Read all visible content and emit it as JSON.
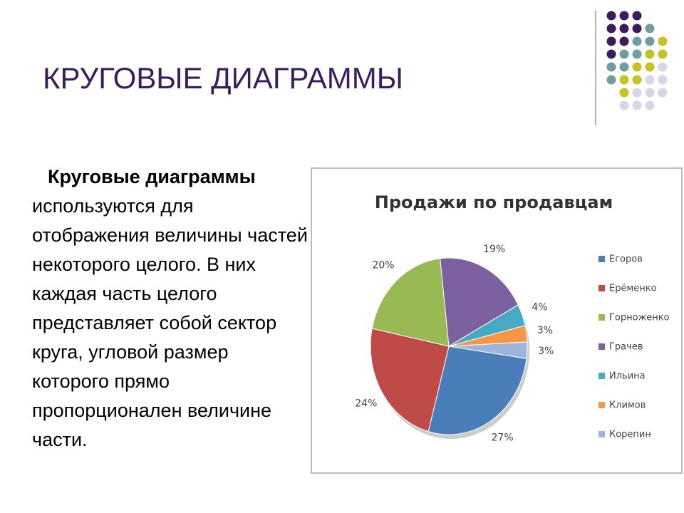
{
  "slide": {
    "title": "КРУГОВЫЕ ДИАГРАММЫ",
    "body_bold": "Круговые диаграммы",
    "body_text": "используются для отображения величины частей некоторого целого. В них каждая часть целого представляет собой сектор круга, угловой размер которого прямо пропорционален величине части."
  },
  "chart_data": {
    "type": "pie",
    "title": "Продажи по продавцам",
    "categories": [
      "Егоров",
      "Ерёменко",
      "Горноженко",
      "Грачев",
      "Ильина",
      "Климов",
      "Корепин"
    ],
    "values": [
      27,
      24,
      20,
      19,
      4,
      3,
      3
    ],
    "value_labels": [
      "27%",
      "24%",
      "20%",
      "19%",
      "4%",
      "3%",
      "3%"
    ],
    "colors": [
      "#4a7ebb",
      "#be4b48",
      "#98b954",
      "#7d60a0",
      "#46aac5",
      "#f79646",
      "#9fb4da"
    ],
    "legend": "right"
  }
}
